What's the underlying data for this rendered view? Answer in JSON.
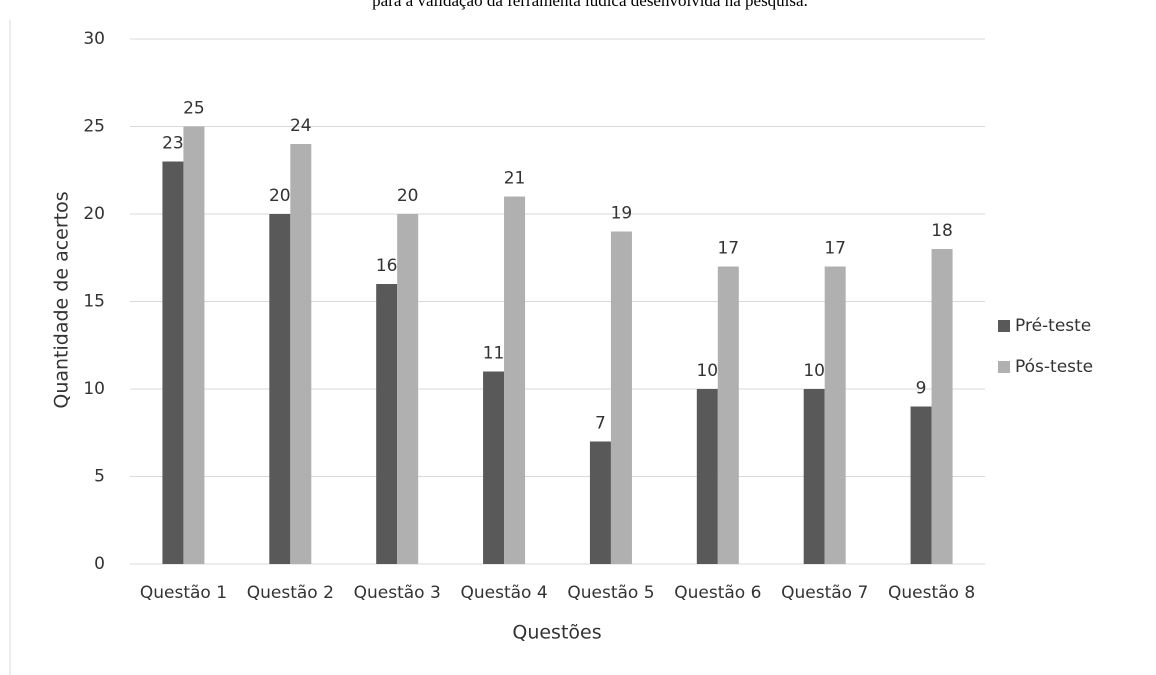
{
  "caption": "para a validação da ferramenta lúdica desenvolvida na pesquisa.",
  "chart_data": {
    "type": "bar",
    "x_label": "Questões",
    "y_label": "Quantidade de acertos",
    "categories": [
      "Questão 1",
      "Questão 2",
      "Questão 3",
      "Questão 4",
      "Questão 5",
      "Questão 6",
      "Questão 7",
      "Questão 8"
    ],
    "series": [
      {
        "name": "Pré-teste",
        "color": "#595959",
        "values": [
          23,
          20,
          16,
          11,
          7,
          10,
          10,
          9
        ]
      },
      {
        "name": "Pós-teste",
        "color": "#b0b0b0",
        "values": [
          25,
          24,
          20,
          21,
          19,
          17,
          17,
          18
        ]
      }
    ],
    "ylim": [
      0,
      30
    ],
    "yticks": [
      0,
      5,
      10,
      15,
      20,
      25,
      30
    ],
    "grid": true,
    "legend": "right"
  }
}
